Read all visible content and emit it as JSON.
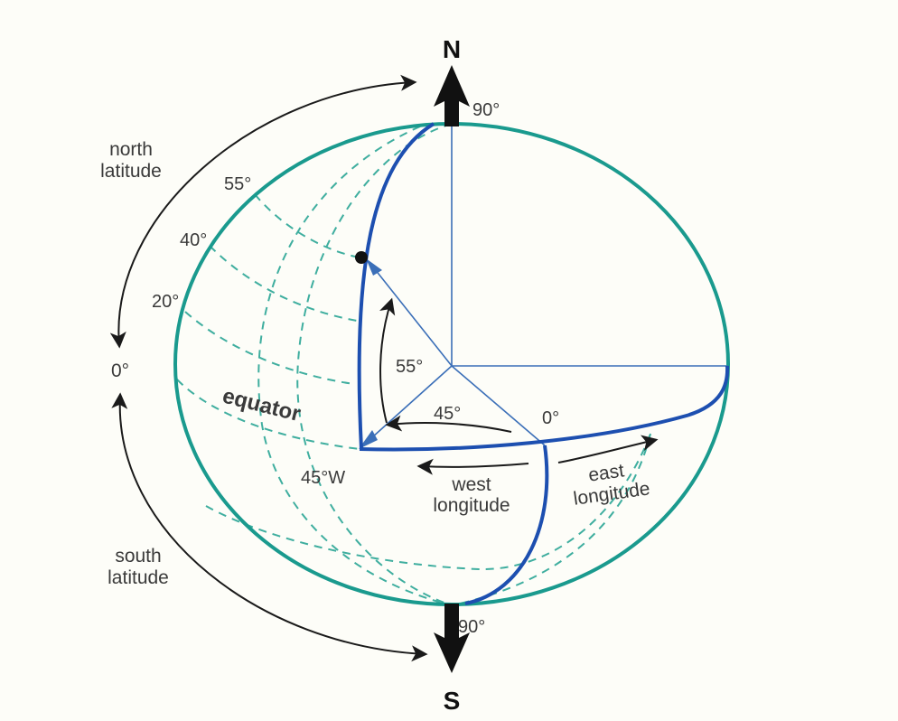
{
  "colors": {
    "sphere": "#1a9a8e",
    "grid": "#3fae9f",
    "meridian": "#1d4fb0",
    "axis": "#3b6fb8",
    "arrow": "#1a1a1a",
    "text": "#3a3a3a"
  },
  "poles": {
    "north": "N",
    "south": "S",
    "north_angle": "90°",
    "south_angle": "90°"
  },
  "latitude": {
    "north_label_1": "north",
    "north_label_2": "latitude",
    "south_label_1": "south",
    "south_label_2": "latitude",
    "zero": "0°",
    "ticks": [
      "55°",
      "40°",
      "20°"
    ]
  },
  "center_angles": {
    "latitude_angle": "55°",
    "longitude_angle": "45°"
  },
  "equator": {
    "label": "equator",
    "prime_meridian": "0°",
    "meridian_45w": "45°W"
  },
  "longitude": {
    "west_1": "west",
    "west_2": "longitude",
    "east_1": "east",
    "east_2": "longitude"
  }
}
